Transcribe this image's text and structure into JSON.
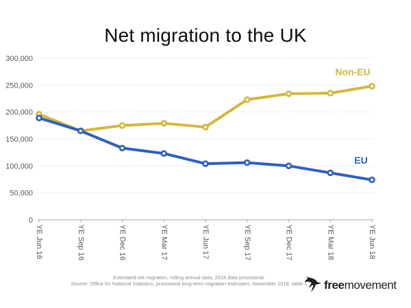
{
  "title": "Net migration to the UK",
  "chart_data": {
    "type": "line",
    "title": "Net migration to the UK",
    "categories": [
      "YE Jun 16",
      "YE Sep 16",
      "YE Dec 16",
      "YE Mar 17",
      "YE Jun 17",
      "YE Sep 17",
      "YE Dec 17",
      "YE Mar 18",
      "YE Jun 18"
    ],
    "series": [
      {
        "name": "Non-EU",
        "color": "#d4b63c",
        "values": [
          196000,
          165000,
          175000,
          179000,
          172000,
          223000,
          234000,
          235000,
          248000
        ]
      },
      {
        "name": "EU",
        "color": "#2d5fc2",
        "values": [
          189000,
          165000,
          133000,
          123000,
          104000,
          106000,
          100000,
          87000,
          74000
        ]
      }
    ],
    "ylim": [
      0,
      300000
    ],
    "ytick_interval": 50000,
    "ytick_labels": [
      "0",
      "50,000",
      "100,000",
      "150,000",
      "200,000",
      "250,000",
      "300,000"
    ],
    "grid": "horizontal-dotted",
    "legend": "inline-series-labels",
    "marker": "open-circle"
  },
  "footer": {
    "note_line1": "Estimated net migration, rolling annual data, 2018 data provisional.",
    "note_line2": "Source: Office for National Statistics, provisional long-term migration estimates, November 2018, table 1",
    "logo_bold": "free",
    "logo_regular": "movement"
  },
  "colors": {
    "non_eu": "#d4b63c",
    "eu": "#2d5fc2",
    "gridline": "#d6d6d6",
    "axis": "#ababab",
    "tick_label": "#555555",
    "note_text": "#8a8a8a",
    "title_text": "#0d0d0d",
    "logo_text": "#1d1d1b"
  }
}
